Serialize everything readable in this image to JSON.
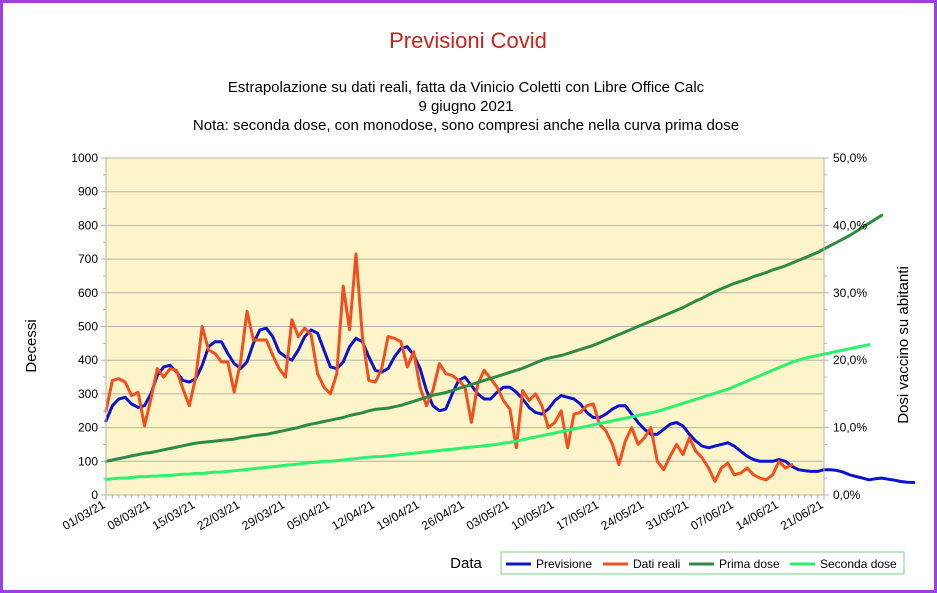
{
  "chart_data": {
    "type": "line",
    "title": "Previsioni Covid",
    "subtitle_lines": [
      "Estrapolazione su dati reali, fatta da Vinicio Coletti con Libre Office Calc",
      "9 giugno 2021",
      "Nota: seconda dose, con monodose, sono compresi anche nella curva prima dose"
    ],
    "xlabel": "Data",
    "ylabel": "Decessi",
    "y2label": "Dosi vaccino su abitanti",
    "x_start": "01/03/21",
    "x_end": "21/06/21",
    "x_ticks": [
      "01/03/21",
      "08/03/21",
      "15/03/21",
      "22/03/21",
      "29/03/21",
      "05/04/21",
      "12/04/21",
      "19/04/21",
      "26/04/21",
      "03/05/21",
      "10/05/21",
      "17/05/21",
      "24/05/21",
      "31/05/21",
      "07/06/21",
      "14/06/21",
      "21/06/21"
    ],
    "ylim": [
      0,
      1000
    ],
    "y_ticks": [
      "0",
      "100",
      "200",
      "300",
      "400",
      "500",
      "600",
      "700",
      "800",
      "900",
      "1000"
    ],
    "y2lim": [
      0,
      0.5
    ],
    "y2_ticks": [
      "0,0%",
      "10,0%",
      "20,0%",
      "30,0%",
      "40,0%",
      "50,0%"
    ],
    "colors": {
      "background": "#fdf5c9",
      "frame": "#9b3fe0",
      "title": "#c9211e",
      "previsione": "#0a14c8",
      "dati_reali": "#f0501e",
      "prima_dose": "#2e8b46",
      "seconda_dose": "#2cf06e"
    },
    "legend_position": "bottom-right",
    "series": [
      {
        "name": "Previsione",
        "axis": "left",
        "color": "#0a14c8",
        "start": "01/03/21",
        "values": [
          220,
          265,
          285,
          290,
          270,
          260,
          265,
          300,
          355,
          380,
          385,
          365,
          340,
          335,
          345,
          385,
          440,
          455,
          455,
          420,
          390,
          375,
          395,
          450,
          490,
          495,
          470,
          425,
          410,
          400,
          430,
          470,
          490,
          480,
          430,
          380,
          375,
          395,
          440,
          465,
          455,
          410,
          370,
          365,
          375,
          410,
          435,
          440,
          415,
          375,
          310,
          265,
          250,
          255,
          300,
          340,
          350,
          325,
          300,
          285,
          285,
          305,
          320,
          320,
          305,
          285,
          260,
          245,
          240,
          255,
          280,
          295,
          290,
          285,
          270,
          245,
          230,
          230,
          240,
          255,
          265,
          265,
          240,
          215,
          195,
          180,
          180,
          195,
          210,
          215,
          205,
          180,
          160,
          145,
          140,
          145,
          150,
          155,
          145,
          130,
          115,
          105,
          100,
          100,
          100,
          105,
          100,
          85,
          75,
          72,
          70,
          70,
          75,
          75,
          73,
          68,
          60,
          55,
          50,
          45,
          48,
          50,
          47,
          44,
          40,
          38,
          37
        ]
      },
      {
        "name": "Dati reali",
        "axis": "left",
        "color": "#f0501e",
        "start": "01/03/21",
        "values": [
          250,
          340,
          345,
          335,
          295,
          305,
          205,
          285,
          375,
          350,
          375,
          370,
          315,
          265,
          350,
          500,
          430,
          420,
          395,
          395,
          305,
          395,
          545,
          460,
          460,
          460,
          415,
          375,
          350,
          520,
          470,
          495,
          475,
          360,
          320,
          300,
          360,
          620,
          490,
          715,
          470,
          340,
          335,
          375,
          470,
          465,
          455,
          380,
          425,
          320,
          265,
          310,
          390,
          360,
          355,
          340,
          320,
          215,
          330,
          370,
          345,
          320,
          280,
          255,
          140,
          310,
          280,
          300,
          265,
          200,
          215,
          250,
          140,
          240,
          245,
          265,
          270,
          210,
          190,
          150,
          90,
          160,
          200,
          150,
          170,
          200,
          100,
          75,
          115,
          150,
          120,
          170,
          130,
          110,
          80,
          40,
          80,
          95,
          60,
          65,
          80,
          60,
          50,
          45,
          60,
          100,
          80,
          90
        ]
      },
      {
        "name": "Prima dose",
        "axis": "right",
        "color": "#2e8b46",
        "start": "01/03/21",
        "values": [
          0.05,
          0.052,
          0.054,
          0.056,
          0.058,
          0.06,
          0.062,
          0.063,
          0.065,
          0.067,
          0.069,
          0.071,
          0.073,
          0.075,
          0.077,
          0.078,
          0.079,
          0.08,
          0.081,
          0.082,
          0.083,
          0.085,
          0.086,
          0.088,
          0.089,
          0.09,
          0.092,
          0.094,
          0.096,
          0.098,
          0.1,
          0.103,
          0.105,
          0.107,
          0.109,
          0.111,
          0.113,
          0.115,
          0.118,
          0.12,
          0.122,
          0.125,
          0.127,
          0.128,
          0.129,
          0.131,
          0.133,
          0.136,
          0.139,
          0.142,
          0.145,
          0.148,
          0.15,
          0.152,
          0.155,
          0.158,
          0.161,
          0.164,
          0.167,
          0.17,
          0.173,
          0.176,
          0.179,
          0.182,
          0.185,
          0.188,
          0.192,
          0.196,
          0.2,
          0.203,
          0.205,
          0.207,
          0.21,
          0.213,
          0.216,
          0.219,
          0.222,
          0.226,
          0.23,
          0.234,
          0.238,
          0.242,
          0.246,
          0.25,
          0.254,
          0.258,
          0.262,
          0.266,
          0.27,
          0.274,
          0.278,
          0.283,
          0.288,
          0.292,
          0.297,
          0.302,
          0.306,
          0.31,
          0.314,
          0.317,
          0.32,
          0.324,
          0.327,
          0.33,
          0.334,
          0.337,
          0.34,
          0.344,
          0.348,
          0.352,
          0.356,
          0.36,
          0.365,
          0.37,
          0.375,
          0.38,
          0.385,
          0.391,
          0.397,
          0.403,
          0.409,
          0.415
        ]
      },
      {
        "name": "Seconda dose",
        "axis": "right",
        "color": "#2cf06e",
        "start": "01/03/21",
        "values": [
          0.023,
          0.024,
          0.025,
          0.025,
          0.026,
          0.027,
          0.027,
          0.028,
          0.028,
          0.029,
          0.029,
          0.03,
          0.031,
          0.031,
          0.032,
          0.032,
          0.033,
          0.034,
          0.034,
          0.035,
          0.036,
          0.037,
          0.038,
          0.039,
          0.04,
          0.041,
          0.042,
          0.043,
          0.044,
          0.045,
          0.046,
          0.047,
          0.048,
          0.049,
          0.05,
          0.05,
          0.051,
          0.052,
          0.053,
          0.054,
          0.055,
          0.056,
          0.057,
          0.057,
          0.058,
          0.059,
          0.06,
          0.061,
          0.062,
          0.063,
          0.064,
          0.065,
          0.066,
          0.067,
          0.068,
          0.069,
          0.07,
          0.071,
          0.072,
          0.073,
          0.074,
          0.075,
          0.077,
          0.078,
          0.08,
          0.082,
          0.084,
          0.086,
          0.088,
          0.09,
          0.092,
          0.094,
          0.096,
          0.098,
          0.1,
          0.102,
          0.104,
          0.106,
          0.108,
          0.11,
          0.112,
          0.114,
          0.116,
          0.118,
          0.12,
          0.122,
          0.124,
          0.127,
          0.13,
          0.133,
          0.136,
          0.139,
          0.142,
          0.145,
          0.148,
          0.151,
          0.154,
          0.157,
          0.161,
          0.165,
          0.169,
          0.173,
          0.177,
          0.181,
          0.185,
          0.189,
          0.193,
          0.197,
          0.2,
          0.203,
          0.205,
          0.207,
          0.209,
          0.211,
          0.213,
          0.215,
          0.217,
          0.219,
          0.221,
          0.223
        ]
      }
    ]
  }
}
